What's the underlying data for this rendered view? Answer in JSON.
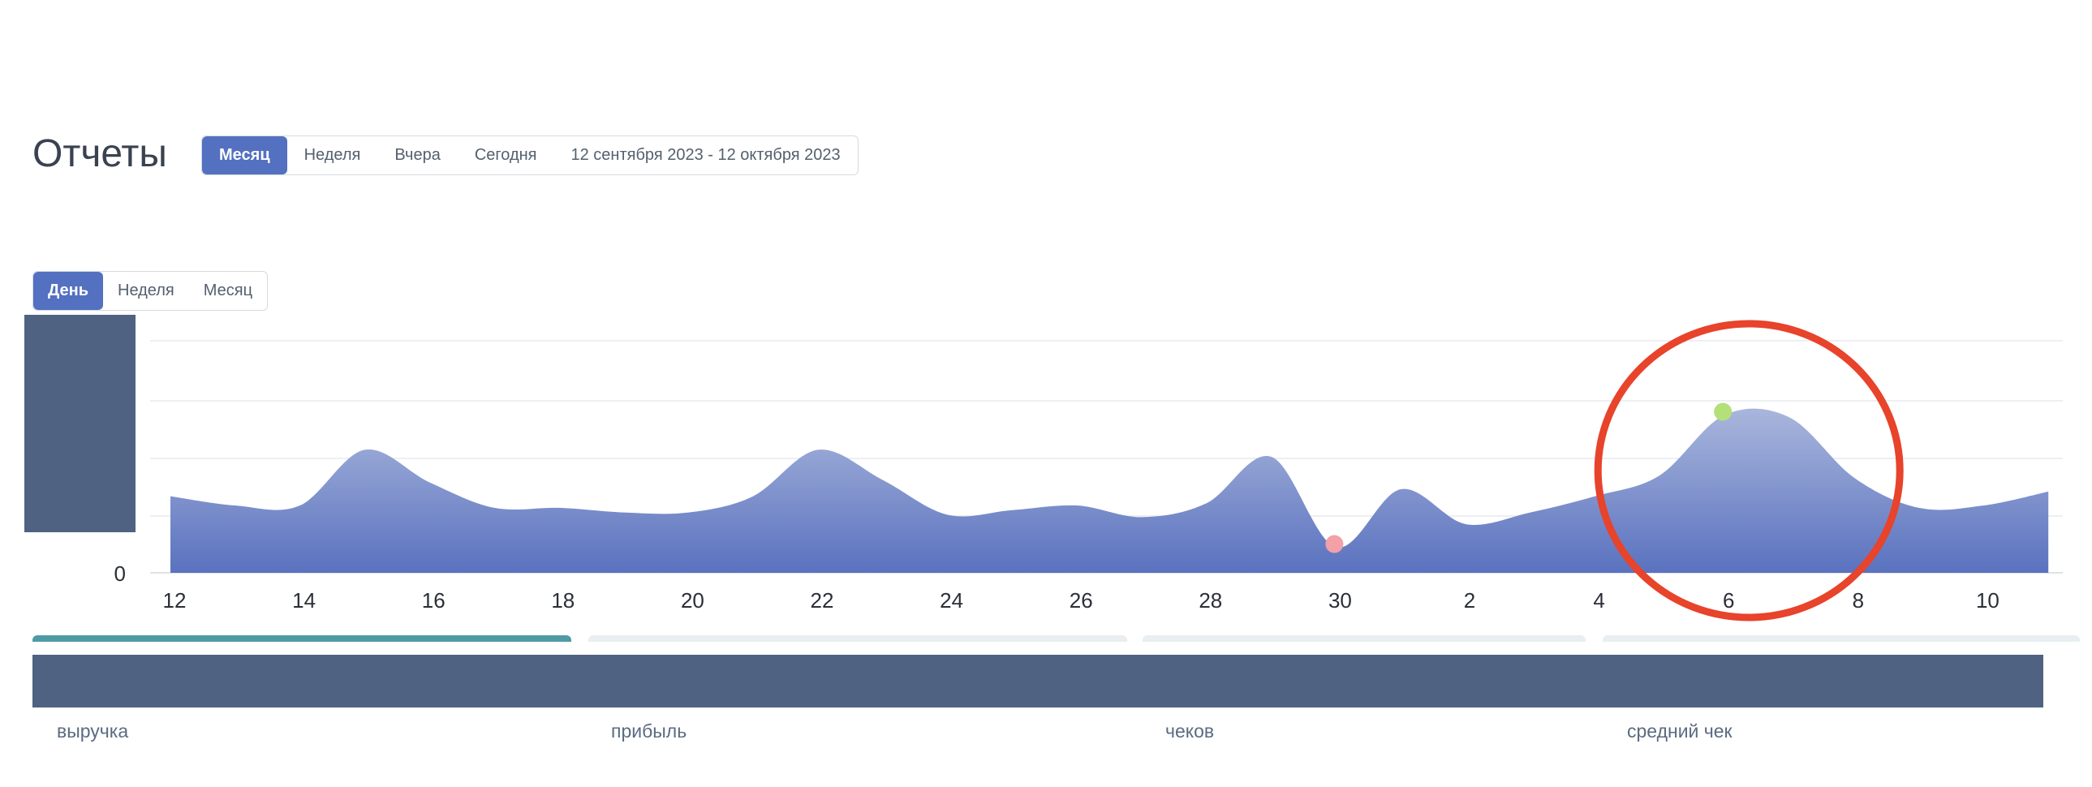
{
  "page": {
    "title": "Отчеты"
  },
  "period_filter": {
    "options": [
      "Месяц",
      "Неделя",
      "Вчера",
      "Сегодня"
    ],
    "active": "Месяц",
    "date_range": "12 сентября 2023 - 12 октября 2023"
  },
  "granularity_filter": {
    "options": [
      "День",
      "Неделя",
      "Месяц"
    ],
    "active": "День"
  },
  "chart_data": {
    "type": "area",
    "x_tick_labels": [
      "12",
      "14",
      "16",
      "18",
      "20",
      "22",
      "24",
      "26",
      "28",
      "30",
      "2",
      "4",
      "6",
      "8",
      "10"
    ],
    "y_tick_labels": [
      "0"
    ],
    "x": [
      "12",
      "13",
      "14",
      "15",
      "16",
      "17",
      "18",
      "19",
      "20",
      "21",
      "22",
      "23",
      "24",
      "25",
      "26",
      "27",
      "28",
      "29",
      "30",
      "1",
      "2",
      "3",
      "4",
      "5",
      "6",
      "7",
      "8",
      "9",
      "10",
      "11"
    ],
    "values": [
      0.33,
      0.29,
      0.29,
      0.53,
      0.39,
      0.28,
      0.28,
      0.26,
      0.26,
      0.33,
      0.53,
      0.4,
      0.25,
      0.27,
      0.29,
      0.24,
      0.3,
      0.5,
      0.11,
      0.36,
      0.21,
      0.26,
      0.33,
      0.42,
      0.68,
      0.67,
      0.41,
      0.28,
      0.29,
      0.35
    ],
    "ylim": [
      0,
      1
    ],
    "grid": true,
    "markers": [
      {
        "x": "30",
        "kind": "min",
        "color": "#f3a0a6"
      },
      {
        "x": "6",
        "kind": "max",
        "color": "#b4e07a"
      }
    ],
    "highlight_circle": {
      "x": "6",
      "color": "#e8432b"
    },
    "colors": {
      "area_top": "#a9b6dc",
      "area_bottom": "#5a72bf",
      "grid": "#eceff3"
    }
  },
  "kpis": [
    {
      "label": "выручка",
      "active": true
    },
    {
      "label": "прибыль",
      "active": false
    },
    {
      "label": "чеков",
      "active": false
    },
    {
      "label": "средний чек",
      "active": false
    }
  ],
  "colors": {
    "accent": "#5470c0",
    "dark_block": "#4f6282",
    "active_kpi": "#4e9ba6"
  }
}
